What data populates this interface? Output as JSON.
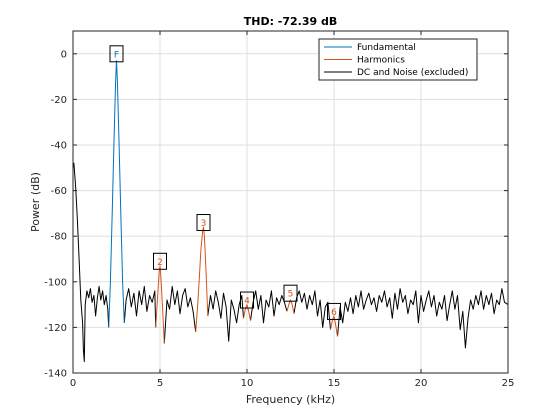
{
  "chart_data": {
    "type": "line",
    "title": "THD: -72.39 dB",
    "xlabel": "Frequency (kHz)",
    "ylabel": "Power (dB)",
    "xlim": [
      0,
      25
    ],
    "ylim": [
      -140,
      10
    ],
    "xticks": [
      0,
      5,
      10,
      15,
      20,
      25
    ],
    "yticks": [
      0,
      -20,
      -40,
      -60,
      -80,
      -100,
      -120,
      -140
    ],
    "grid": true,
    "legend_position": "top-right",
    "series": [
      {
        "name": "Fundamental",
        "color": "#0072BD",
        "x": [
          2.05,
          2.15,
          2.25,
          2.35,
          2.45,
          2.5,
          2.55,
          2.65,
          2.75,
          2.85,
          2.95
        ],
        "y": [
          -120,
          -100,
          -70,
          -40,
          -12,
          -3,
          -12,
          -40,
          -70,
          -100,
          -118
        ]
      },
      {
        "name": "Harmonics",
        "color": "#D95319",
        "segments": [
          {
            "x": [
              4.75,
              4.85,
              4.95,
              5.0,
              5.05,
              5.15,
              5.25
            ],
            "y": [
              -120,
              -108,
              -96,
              -93,
              -98,
              -112,
              -127
            ]
          },
          {
            "x": [
              7.05,
              7.15,
              7.25,
              7.35,
              7.45,
              7.5,
              7.55,
              7.65,
              7.75
            ],
            "y": [
              -122,
              -112,
              -100,
              -86,
              -78,
              -76,
              -80,
              -96,
              -115
            ]
          },
          {
            "x": [
              9.8,
              9.9,
              10.0,
              10.1,
              10.2
            ],
            "y": [
              -116,
              -112,
              -110,
              -113,
              -117
            ]
          },
          {
            "x": [
              12.3,
              12.4,
              12.5,
              12.6,
              12.7
            ],
            "y": [
              -113,
              -110,
              -108,
              -110,
              -114
            ]
          },
          {
            "x": [
              14.8,
              14.9,
              15.0,
              15.1,
              15.2
            ],
            "y": [
              -121,
              -117,
              -115,
              -119,
              -124
            ]
          }
        ]
      },
      {
        "name": "DC and Noise (excluded)",
        "color": "#000000",
        "segments": [
          {
            "x": [
              0.0,
              0.05,
              0.15,
              0.25,
              0.35,
              0.45,
              0.55,
              0.6,
              0.65,
              0.7,
              0.8,
              0.9,
              1.0,
              1.1,
              1.2,
              1.3,
              1.4,
              1.5,
              1.6,
              1.7,
              1.8,
              1.9,
              2.0,
              2.05
            ],
            "y": [
              -50,
              -48,
              -58,
              -72,
              -90,
              -108,
              -118,
              -130,
              -135,
              -110,
              -104,
              -107,
              -103,
              -109,
              -106,
              -115,
              -107,
              -102,
              -108,
              -104,
              -110,
              -106,
              -112,
              -120
            ]
          },
          {
            "x": [
              2.95,
              3.05,
              3.2,
              3.35,
              3.5,
              3.65,
              3.8,
              3.95,
              4.1,
              4.25,
              4.4,
              4.55,
              4.7,
              4.75
            ],
            "y": [
              -118,
              -108,
              -103,
              -111,
              -105,
              -115,
              -104,
              -110,
              -102,
              -113,
              -106,
              -109,
              -104,
              -120
            ],
            "end": true
          },
          {
            "x": [
              5.25,
              5.4,
              5.55,
              5.7,
              5.85,
              6.0,
              6.15,
              6.3,
              6.45,
              6.6,
              6.75,
              6.9,
              7.05
            ],
            "y": [
              -127,
              -108,
              -112,
              -102,
              -110,
              -104,
              -114,
              -106,
              -103,
              -111,
              -107,
              -113,
              -122
            ]
          },
          {
            "x": [
              7.75,
              7.9,
              8.05,
              8.2,
              8.35,
              8.5,
              8.65,
              8.8,
              8.95,
              9.1,
              9.25,
              9.4,
              9.55,
              9.7,
              9.8
            ],
            "y": [
              -115,
              -106,
              -112,
              -104,
              -109,
              -116,
              -105,
              -111,
              -126,
              -108,
              -112,
              -118,
              -110,
              -106,
              -116
            ]
          },
          {
            "x": [
              10.2,
              10.35,
              10.5,
              10.65,
              10.8,
              10.95,
              11.1,
              11.25,
              11.4,
              11.55,
              11.7,
              11.85,
              12.0,
              12.15,
              12.3
            ],
            "y": [
              -117,
              -109,
              -104,
              -112,
              -106,
              -118,
              -108,
              -111,
              -104,
              -115,
              -107,
              -110,
              -106,
              -109,
              -113
            ]
          },
          {
            "x": [
              12.7,
              12.85,
              13.0,
              13.15,
              13.3,
              13.45,
              13.6,
              13.75,
              13.9,
              14.05,
              14.2,
              14.35,
              14.5,
              14.65,
              14.8
            ],
            "y": [
              -114,
              -107,
              -104,
              -109,
              -105,
              -112,
              -106,
              -110,
              -104,
              -115,
              -108,
              -120,
              -111,
              -109,
              -121
            ]
          },
          {
            "x": [
              15.2,
              15.35,
              15.5,
              15.65,
              15.8,
              15.95,
              16.1,
              16.25,
              16.4,
              16.55,
              16.7,
              16.85,
              17.0,
              17.15,
              17.3,
              17.45,
              17.6,
              17.75,
              17.9,
              18.05,
              18.2,
              18.35,
              18.5,
              18.65,
              18.8,
              18.95,
              19.1,
              19.25,
              19.4,
              19.55,
              19.7,
              19.85,
              20.0,
              20.15,
              20.3,
              20.45,
              20.6,
              20.75,
              20.9,
              21.05,
              21.2,
              21.35,
              21.5,
              21.65,
              21.8,
              21.95,
              22.1,
              22.25,
              22.4,
              22.55,
              22.7,
              22.85,
              23.0,
              23.15,
              23.3,
              23.45,
              23.6,
              23.75,
              23.9,
              24.05,
              24.2,
              24.35,
              24.5,
              24.65,
              24.8,
              25.0
            ],
            "y": [
              -124,
              -111,
              -118,
              -109,
              -113,
              -107,
              -114,
              -106,
              -111,
              -104,
              -112,
              -108,
              -105,
              -110,
              -107,
              -113,
              -106,
              -109,
              -104,
              -111,
              -107,
              -116,
              -105,
              -112,
              -103,
              -109,
              -106,
              -114,
              -108,
              -110,
              -104,
              -118,
              -106,
              -113,
              -108,
              -104,
              -111,
              -106,
              -115,
              -109,
              -112,
              -106,
              -117,
              -110,
              -104,
              -112,
              -106,
              -121,
              -113,
              -129,
              -116,
              -108,
              -112,
              -106,
              -110,
              -104,
              -112,
              -106,
              -110,
              -105,
              -114,
              -108,
              -110,
              -103,
              -109,
              -110
            ]
          }
        ]
      }
    ],
    "annotations": [
      {
        "label": "F",
        "x": 2.5,
        "y": 0
      },
      {
        "label": "2",
        "x": 5.0,
        "y": -91
      },
      {
        "label": "3",
        "x": 7.5,
        "y": -74
      },
      {
        "label": "4",
        "x": 10.0,
        "y": -108
      },
      {
        "label": "5",
        "x": 12.5,
        "y": -105
      },
      {
        "label": "6",
        "x": 15.0,
        "y": -113
      }
    ]
  }
}
